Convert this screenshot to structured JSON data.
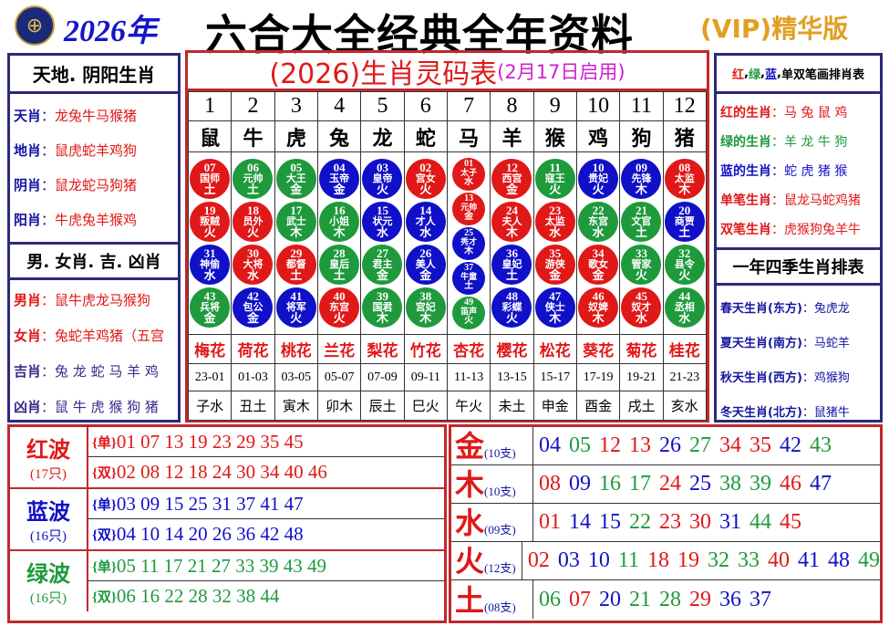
{
  "header": {
    "logo_icon": "lottery-emblem-icon",
    "year": "2026年",
    "title": "六合大全经典全年资料",
    "vip": "(VIP)精华版"
  },
  "colors": {
    "red": "#e01818",
    "green": "#1e9a3c",
    "blue": "#1010c8"
  },
  "left": {
    "title1": "天地. 阴阳生肖",
    "rows1": [
      {
        "k": "天肖",
        "v": "龙兔牛马猴猪"
      },
      {
        "k": "地肖",
        "v": "鼠虎蛇羊鸡狗"
      },
      {
        "k": "阴肖",
        "v": "鼠龙蛇马狗猪"
      },
      {
        "k": "阳肖",
        "v": "牛虎兔羊猴鸡"
      }
    ],
    "title2": "男. 女肖. 吉. 凶肖",
    "rows2": [
      {
        "k": "男肖",
        "v": "鼠牛虎龙马猴狗"
      },
      {
        "k": "女肖",
        "v": "兔蛇羊鸡猪（五宫"
      },
      {
        "k": "吉肖",
        "v": "兔 龙 蛇 马 羊 鸡"
      },
      {
        "k": "凶肖",
        "v": "鼠 牛 虎 猴 狗 猪"
      }
    ]
  },
  "right": {
    "title1_parts": [
      "红",
      "绿",
      "蓝",
      "单双笔画排肖表"
    ],
    "rows1": [
      {
        "k": "红的生肖",
        "v": "马 兔 鼠 鸡",
        "c": "red"
      },
      {
        "k": "绿的生肖",
        "v": "羊 龙 牛 狗",
        "c": "green"
      },
      {
        "k": "蓝的生肖",
        "v": "蛇 虎 猪 猴",
        "c": "blue"
      },
      {
        "k": "单笔生肖",
        "v": "鼠龙马蛇鸡猪",
        "c": "red"
      },
      {
        "k": "双笔生肖",
        "v": "虎猴狗兔羊牛",
        "c": "red"
      }
    ],
    "title2": "一年四季生肖排表",
    "rows2": [
      {
        "k": "春天生肖(东方)",
        "v": "兔虎龙"
      },
      {
        "k": "夏天生肖(南方)",
        "v": "马蛇羊"
      },
      {
        "k": "秋天生肖(西方)",
        "v": "鸡猴狗"
      },
      {
        "k": "冬天生肖(北方)",
        "v": "鼠猪牛"
      }
    ]
  },
  "center": {
    "title": "(2026)生肖灵码表",
    "subtitle": "(2月17日启用)",
    "columns": [
      {
        "no": "1",
        "zodiac": "鼠",
        "flower": "梅花",
        "time": "23-01",
        "branch": "子水",
        "balls": [
          [
            "07",
            "国师",
            "土"
          ],
          [
            "19",
            "叛贼",
            "火"
          ],
          [
            "31",
            "神偷",
            "水"
          ],
          [
            "43",
            "兵将",
            "金"
          ]
        ]
      },
      {
        "no": "2",
        "zodiac": "牛",
        "flower": "荷花",
        "time": "01-03",
        "branch": "丑土",
        "balls": [
          [
            "06",
            "元帅",
            "土"
          ],
          [
            "18",
            "员外",
            "火"
          ],
          [
            "30",
            "大将",
            "水"
          ],
          [
            "42",
            "包公",
            "金"
          ]
        ]
      },
      {
        "no": "3",
        "zodiac": "虎",
        "flower": "桃花",
        "time": "03-05",
        "branch": "寅木",
        "balls": [
          [
            "05",
            "大王",
            "金"
          ],
          [
            "17",
            "武士",
            "木"
          ],
          [
            "29",
            "都督",
            "土"
          ],
          [
            "41",
            "将军",
            "火"
          ]
        ]
      },
      {
        "no": "4",
        "zodiac": "兔",
        "flower": "兰花",
        "time": "05-07",
        "branch": "卯木",
        "balls": [
          [
            "04",
            "玉帝",
            "金"
          ],
          [
            "16",
            "小姐",
            "木"
          ],
          [
            "28",
            "皇后",
            "土"
          ],
          [
            "40",
            "东宫",
            "火"
          ]
        ]
      },
      {
        "no": "5",
        "zodiac": "龙",
        "flower": "梨花",
        "time": "07-09",
        "branch": "辰土",
        "balls": [
          [
            "03",
            "皇帝",
            "火"
          ],
          [
            "15",
            "状元",
            "水"
          ],
          [
            "27",
            "君主",
            "金"
          ],
          [
            "39",
            "国君",
            "木"
          ]
        ]
      },
      {
        "no": "6",
        "zodiac": "蛇",
        "flower": "竹花",
        "time": "09-11",
        "branch": "巳火",
        "balls": [
          [
            "02",
            "宫女",
            "火"
          ],
          [
            "14",
            "才人",
            "水"
          ],
          [
            "26",
            "美人",
            "金"
          ],
          [
            "38",
            "宫妃",
            "木"
          ]
        ]
      },
      {
        "no": "7",
        "zodiac": "马",
        "flower": "杏花",
        "time": "11-13",
        "branch": "午火",
        "balls": [
          [
            "01",
            "太子",
            "水"
          ],
          [
            "13",
            "元帅",
            "金"
          ],
          [
            "25",
            "秀才",
            "木"
          ],
          [
            "37",
            "牛童",
            "土"
          ],
          [
            "49",
            "笛声",
            "火"
          ]
        ]
      },
      {
        "no": "8",
        "zodiac": "羊",
        "flower": "樱花",
        "time": "13-15",
        "branch": "未土",
        "balls": [
          [
            "12",
            "西宫",
            "金"
          ],
          [
            "24",
            "夫人",
            "木"
          ],
          [
            "36",
            "皇妃",
            "土"
          ],
          [
            "48",
            "彩蝶",
            "火"
          ]
        ]
      },
      {
        "no": "9",
        "zodiac": "猴",
        "flower": "松花",
        "time": "15-17",
        "branch": "申金",
        "balls": [
          [
            "11",
            "寇王",
            "火"
          ],
          [
            "23",
            "太监",
            "水"
          ],
          [
            "35",
            "游侠",
            "金"
          ],
          [
            "47",
            "侠士",
            "木"
          ]
        ]
      },
      {
        "no": "10",
        "zodiac": "鸡",
        "flower": "葵花",
        "time": "17-19",
        "branch": "酉金",
        "balls": [
          [
            "10",
            "贵妃",
            "火"
          ],
          [
            "22",
            "东宫",
            "水"
          ],
          [
            "34",
            "歌女",
            "金"
          ],
          [
            "46",
            "奴婢",
            "木"
          ]
        ]
      },
      {
        "no": "11",
        "zodiac": "狗",
        "flower": "菊花",
        "time": "19-21",
        "branch": "戌土",
        "balls": [
          [
            "09",
            "先锋",
            "木"
          ],
          [
            "21",
            "文官",
            "土"
          ],
          [
            "33",
            "管家",
            "火"
          ],
          [
            "45",
            "奴才",
            "水"
          ]
        ]
      },
      {
        "no": "12",
        "zodiac": "猪",
        "flower": "桂花",
        "time": "21-23",
        "branch": "亥水",
        "balls": [
          [
            "08",
            "太监",
            "木"
          ],
          [
            "20",
            "商贾",
            "土"
          ],
          [
            "32",
            "县令",
            "火"
          ],
          [
            "44",
            "丞相",
            "水"
          ]
        ]
      }
    ]
  },
  "waves": [
    {
      "name": "红波",
      "count": "(17只)",
      "color": "red",
      "odd_label": "{单}",
      "odd": "01 07 13 19 23 29 35 45",
      "even_label": "{双}",
      "even": "02 08 12 18 24 30 34 40 46"
    },
    {
      "name": "蓝波",
      "count": "(16只)",
      "color": "blue",
      "odd_label": "{单}",
      "odd": "03 09 15 25 31 37 41 47",
      "even_label": "{双}",
      "even": "04 10 14 20 26 36 42 48"
    },
    {
      "name": "绿波",
      "count": "(16只)",
      "color": "green",
      "odd_label": "{单}",
      "odd": "05 11 17 21 27 33 39 43 49",
      "even_label": "{双}",
      "even": "06 16 22 28 32 38 44"
    }
  ],
  "elements": [
    {
      "name": "金",
      "count": "(10支)",
      "numbers": [
        "04",
        "05",
        "12",
        "13",
        "26",
        "27",
        "34",
        "35",
        "42",
        "43"
      ]
    },
    {
      "name": "木",
      "count": "(10支)",
      "numbers": [
        "08",
        "09",
        "16",
        "17",
        "24",
        "25",
        "38",
        "39",
        "46",
        "47"
      ]
    },
    {
      "name": "水",
      "count": "(09支)",
      "numbers": [
        "01",
        "14",
        "15",
        "22",
        "23",
        "30",
        "31",
        "44",
        "45"
      ]
    },
    {
      "name": "火",
      "count": "(12支)",
      "numbers": [
        "02",
        "03",
        "10",
        "11",
        "18",
        "19",
        "32",
        "33",
        "40",
        "41",
        "48",
        "49"
      ]
    },
    {
      "name": "土",
      "count": "(08支)",
      "numbers": [
        "06",
        "07",
        "20",
        "21",
        "28",
        "29",
        "36",
        "37"
      ]
    }
  ]
}
